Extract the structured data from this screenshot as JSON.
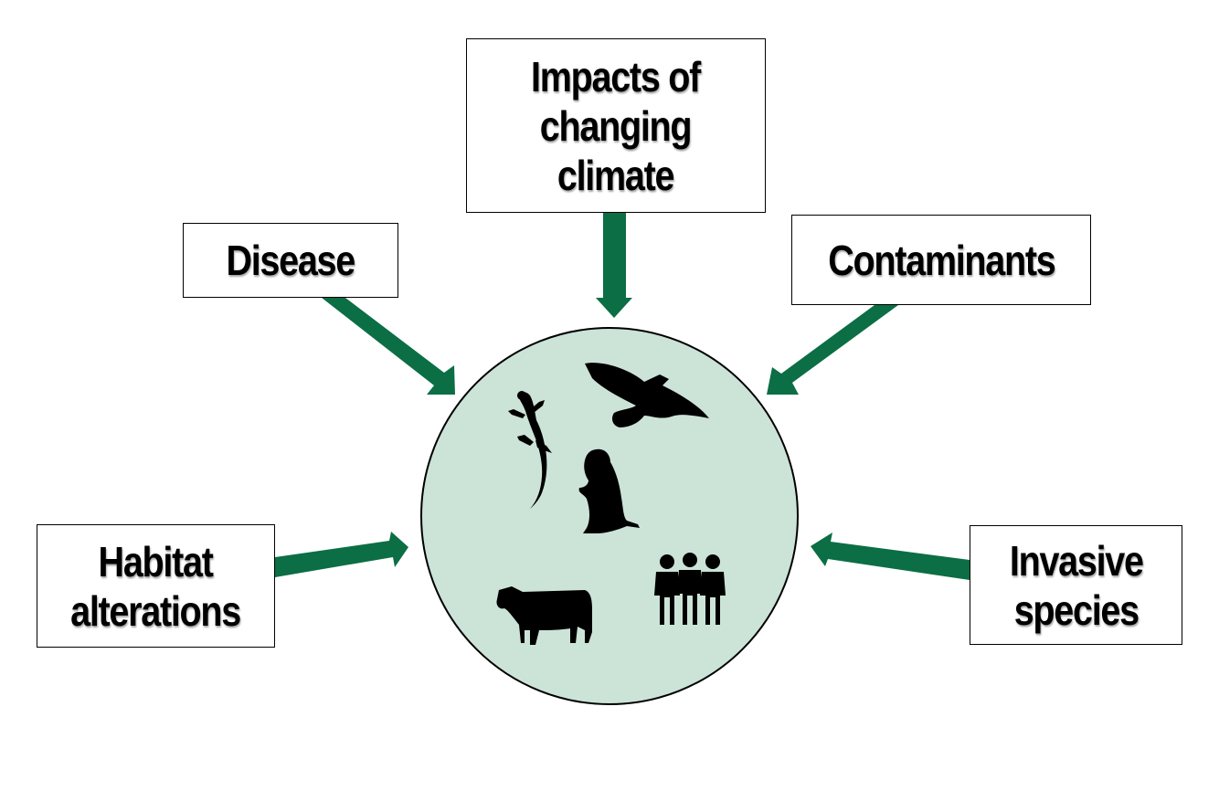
{
  "stressors": {
    "climate": {
      "lines": [
        "Impacts of",
        "changing",
        "climate"
      ]
    },
    "disease": {
      "lines": [
        "Disease"
      ]
    },
    "contaminants": {
      "lines": [
        "Contaminants"
      ]
    },
    "habitat": {
      "lines": [
        "Habitat",
        "alterations"
      ]
    },
    "invasive": {
      "lines": [
        "Invasive",
        "species"
      ]
    }
  },
  "center": {
    "fill_color": "#cce3d8",
    "icons": [
      "lizard-icon",
      "hawk-icon",
      "prairie-dog-icon",
      "cow-icon",
      "people-group-icon"
    ]
  },
  "colors": {
    "arrow": "#0b6e45",
    "box_border": "#000000",
    "text": "#000000"
  }
}
